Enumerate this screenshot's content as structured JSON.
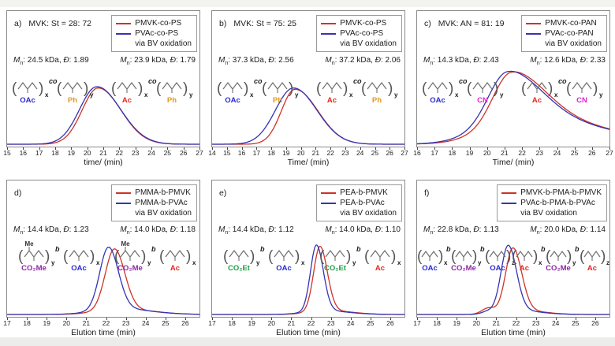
{
  "figure": {
    "description": "GPC elution chromatograms, six panels a-f, red and blue overlaid traces",
    "background": "#ffffff"
  },
  "colors": {
    "curve_red": "#cd3328",
    "curve_blue": "#3434b4",
    "oac": "#2a2ad0",
    "ac": "#e02a1e",
    "ph": "#e49a20",
    "cn": "#e022d6",
    "co2me": "#8d26a8",
    "co2et": "#219b43",
    "backbone": "#6f6f6f",
    "frame": "#8a8a8a",
    "text": "#1d1d1d"
  },
  "labels": {
    "mn_symbol": "M",
    "mn_sub": "n",
    "colon": ": ",
    "kda": "kDa",
    "comma": ", ",
    "dispersity_symbol": "Đ"
  },
  "panels": [
    {
      "id": "a",
      "letter": "a)",
      "condition": "MVK: St = 28: 72",
      "legend": {
        "entries": [
          {
            "label": "PMVK-co-PS",
            "color": "curve_red"
          },
          {
            "label": "PVAc-co-PS",
            "color": "curve_blue"
          }
        ],
        "note": "via BV oxidation"
      },
      "annotations": [
        {
          "mn": "24.5",
          "d": "1.89"
        },
        {
          "mn": "23.9",
          "d": "1.79"
        }
      ],
      "structures": [
        {
          "linker": "co",
          "units": [
            {
              "sub": "OAc",
              "color": "oac",
              "subscript": "x"
            },
            {
              "sub": "Ph",
              "color": "ph",
              "subscript": "y"
            }
          ]
        },
        {
          "linker": "co",
          "units": [
            {
              "sub": "Ac",
              "color": "ac",
              "subscript": "x"
            },
            {
              "sub": "Ph",
              "color": "ph",
              "subscript": "y"
            }
          ]
        }
      ]
    },
    {
      "id": "b",
      "letter": "b)",
      "condition": "MVK: St = 75: 25",
      "legend": {
        "entries": [
          {
            "label": "PMVK-co-PS",
            "color": "curve_red"
          },
          {
            "label": "PVAc-co-PS",
            "color": "curve_blue"
          }
        ],
        "note": "via BV oxidation"
      },
      "annotations": [
        {
          "mn": "37.3",
          "d": "2.56"
        },
        {
          "mn": "37.2",
          "d": "2.06"
        }
      ],
      "structures": [
        {
          "linker": "co",
          "units": [
            {
              "sub": "OAc",
              "color": "oac",
              "subscript": "x"
            },
            {
              "sub": "Ph",
              "color": "ph",
              "subscript": "y"
            }
          ]
        },
        {
          "linker": "co",
          "units": [
            {
              "sub": "Ac",
              "color": "ac",
              "subscript": "x"
            },
            {
              "sub": "Ph",
              "color": "ph",
              "subscript": "y"
            }
          ]
        }
      ]
    },
    {
      "id": "c",
      "letter": "c)",
      "condition": "MVK: AN = 81: 19",
      "legend": {
        "entries": [
          {
            "label": "PMVK-co-PAN",
            "color": "curve_red"
          },
          {
            "label": "PVAc-co-PAN",
            "color": "curve_blue"
          }
        ],
        "note": "via BV oxidation"
      },
      "annotations": [
        {
          "mn": "14.3",
          "d": "2.43"
        },
        {
          "mn": "12.6",
          "d": "2.33"
        }
      ],
      "structures": [
        {
          "linker": "co",
          "units": [
            {
              "sub": "OAc",
              "color": "oac",
              "subscript": "x"
            },
            {
              "sub": "CN",
              "color": "cn",
              "subscript": "y"
            }
          ]
        },
        {
          "linker": "co",
          "units": [
            {
              "sub": "Ac",
              "color": "ac",
              "subscript": "x"
            },
            {
              "sub": "CN",
              "color": "cn",
              "subscript": "y"
            }
          ]
        }
      ]
    },
    {
      "id": "d",
      "letter": "d)",
      "condition": "",
      "legend": {
        "entries": [
          {
            "label": "PMMA-b-PMVK",
            "color": "curve_red"
          },
          {
            "label": "PMMA-b-PVAc",
            "color": "curve_blue"
          }
        ],
        "note": "via BV oxidation"
      },
      "annotations": [
        {
          "mn": "14.4",
          "d": "1.23"
        },
        {
          "mn": "14.0",
          "d": "1.18"
        }
      ],
      "structures": [
        {
          "linker": "b",
          "units": [
            {
              "top": "Me",
              "sub": "CO₂Me",
              "color": "co2me",
              "subscript": "y"
            },
            {
              "sub": "OAc",
              "color": "oac",
              "subscript": "x"
            }
          ]
        },
        {
          "linker": "b",
          "units": [
            {
              "top": "Me",
              "sub": "CO₂Me",
              "color": "co2me",
              "subscript": "y"
            },
            {
              "sub": "Ac",
              "color": "ac",
              "subscript": "x"
            }
          ]
        }
      ]
    },
    {
      "id": "e",
      "letter": "e)",
      "condition": "",
      "legend": {
        "entries": [
          {
            "label": "PEA-b-PMVK",
            "color": "curve_red"
          },
          {
            "label": "PEA-b-PVAc",
            "color": "curve_blue"
          }
        ],
        "note": "via BV oxidation"
      },
      "annotations": [
        {
          "mn": "14.4",
          "d": "1.12"
        },
        {
          "mn": "14.0",
          "d": "1.10"
        }
      ],
      "structures": [
        {
          "linker": "b",
          "units": [
            {
              "sub": "CO₂Et",
              "color": "co2et",
              "subscript": "y"
            },
            {
              "sub": "OAc",
              "color": "oac",
              "subscript": "x"
            }
          ]
        },
        {
          "linker": "b",
          "units": [
            {
              "sub": "CO₂Et",
              "color": "co2et",
              "subscript": "y"
            },
            {
              "sub": "Ac",
              "color": "ac",
              "subscript": "x"
            }
          ]
        }
      ]
    },
    {
      "id": "f",
      "letter": "f)",
      "condition": "",
      "legend": {
        "entries": [
          {
            "label": "PMVK-b-PMA-b-PMVK",
            "color": "curve_red"
          },
          {
            "label": "PVAc-b-PMA-b-PVAc",
            "color": "curve_blue"
          }
        ],
        "note": "via BV oxidation"
      },
      "annotations": [
        {
          "mn": "22.8",
          "d": "1.13"
        },
        {
          "mn": "20.0",
          "d": "1.14"
        }
      ],
      "structures": [
        {
          "linker": "b",
          "units": [
            {
              "sub": "OAc",
              "color": "oac",
              "subscript": "x"
            },
            {
              "sub": "CO₂Me",
              "color": "co2me",
              "subscript": "y"
            },
            {
              "sub": "OAc",
              "color": "oac",
              "subscript": "z"
            }
          ]
        },
        {
          "linker": "b",
          "units": [
            {
              "sub": "Ac",
              "color": "ac",
              "subscript": "x"
            },
            {
              "sub": "CO₂Me",
              "color": "co2me",
              "subscript": "y"
            },
            {
              "sub": "Ac",
              "color": "ac",
              "subscript": "z"
            }
          ]
        }
      ]
    }
  ],
  "chart_data": [
    {
      "type": "line",
      "panel": "a",
      "title": "MVK: St = 28: 72",
      "xlabel": "time/ (min)",
      "xlim": [
        15,
        27
      ],
      "xticks": [
        15,
        16,
        17,
        18,
        19,
        20,
        21,
        22,
        23,
        24,
        25,
        26,
        27
      ],
      "grid": false,
      "legend_position": "top-right",
      "series": [
        {
          "name": "PMVK-co-PS",
          "color": "#cd3328",
          "mn_kda": 24.5,
          "dispersity": 1.89,
          "peak_components": [
            {
              "center": 20.68,
              "sigma_left": 1.0,
              "sigma_right": 1.42,
              "amplitude": 0.43
            }
          ]
        },
        {
          "name": "PVAc-co-PS via BV oxidation",
          "color": "#3434b4",
          "mn_kda": 23.9,
          "dispersity": 1.79,
          "peak_components": [
            {
              "center": 20.6,
              "sigma_left": 1.08,
              "sigma_right": 1.48,
              "amplitude": 0.44
            }
          ]
        }
      ]
    },
    {
      "type": "line",
      "panel": "b",
      "title": "MVK: St = 75: 25",
      "xlabel": "Time/ (min)",
      "xlim": [
        14,
        27
      ],
      "xticks": [
        14,
        15,
        16,
        17,
        18,
        19,
        20,
        21,
        22,
        23,
        24,
        25,
        26,
        27
      ],
      "grid": false,
      "legend_position": "top-right",
      "series": [
        {
          "name": "PMVK-co-PS",
          "color": "#cd3328",
          "mn_kda": 37.3,
          "dispersity": 2.56,
          "peak_components": [
            {
              "center": 19.6,
              "sigma_left": 0.92,
              "sigma_right": 1.55,
              "amplitude": 0.42
            }
          ]
        },
        {
          "name": "PVAc-co-PS via BV oxidation",
          "color": "#3434b4",
          "mn_kda": 37.2,
          "dispersity": 2.06,
          "peak_components": [
            {
              "center": 19.5,
              "sigma_left": 1.22,
              "sigma_right": 1.58,
              "amplitude": 0.43
            }
          ]
        }
      ]
    },
    {
      "type": "line",
      "panel": "c",
      "title": "MVK: AN = 81: 19",
      "xlabel": "Time/ (min)",
      "xlim": [
        16,
        27
      ],
      "xticks": [
        16,
        17,
        18,
        19,
        20,
        21,
        22,
        23,
        24,
        25,
        26,
        27
      ],
      "grid": false,
      "legend_position": "top-right",
      "series": [
        {
          "name": "PMVK-co-PAN",
          "color": "#cd3328",
          "mn_kda": 14.3,
          "dispersity": 2.43,
          "peak_components": [
            {
              "center": 21.35,
              "sigma_left": 1.0,
              "sigma_right": 1.9,
              "amplitude": 0.35
            },
            {
              "center": 22.0,
              "sigma_left": 2.0,
              "sigma_right": 4.5,
              "amplitude": 0.21
            }
          ]
        },
        {
          "name": "PVAc-co-PAN via BV oxidation",
          "color": "#3434b4",
          "mn_kda": 12.6,
          "dispersity": 2.33,
          "peak_components": [
            {
              "center": 21.13,
              "sigma_left": 1.05,
              "sigma_right": 1.9,
              "amplitude": 0.35
            },
            {
              "center": 21.8,
              "sigma_left": 2.05,
              "sigma_right": 4.5,
              "amplitude": 0.215
            }
          ]
        }
      ]
    },
    {
      "type": "line",
      "panel": "d",
      "title": "",
      "xlabel": "Elution time (min)",
      "xlim": [
        17,
        26.72
      ],
      "xticks": [
        17,
        18,
        19,
        20,
        21,
        22,
        23,
        24,
        25,
        26
      ],
      "grid": false,
      "legend_position": "top-right",
      "series": [
        {
          "name": "PMMA-b-PMVK",
          "color": "#cd3328",
          "mn_kda": 14.4,
          "dispersity": 1.23,
          "peak_components": [
            {
              "center": 22.42,
              "sigma_left": 0.46,
              "sigma_right": 0.52,
              "amplitude": 0.46
            },
            {
              "center": 22.8,
              "sigma_left": 1.2,
              "sigma_right": 1.5,
              "amplitude": 0.04
            }
          ]
        },
        {
          "name": "PMMA-b-PVAc via BV oxidation",
          "color": "#3434b4",
          "mn_kda": 14.0,
          "dispersity": 1.18,
          "peak_components": [
            {
              "center": 22.12,
              "sigma_left": 0.44,
              "sigma_right": 0.5,
              "amplitude": 0.47
            },
            {
              "center": 22.6,
              "sigma_left": 1.2,
              "sigma_right": 1.6,
              "amplitude": 0.045
            }
          ]
        }
      ]
    },
    {
      "type": "line",
      "panel": "e",
      "title": "",
      "xlabel": "Elution time (min)",
      "xlim": [
        17,
        26.72
      ],
      "xticks": [
        17,
        18,
        19,
        20,
        21,
        22,
        23,
        24,
        25,
        26
      ],
      "grid": false,
      "legend_position": "top-right",
      "series": [
        {
          "name": "PEA-b-PMVK",
          "color": "#cd3328",
          "mn_kda": 14.4,
          "dispersity": 1.12,
          "peak_components": [
            {
              "center": 22.45,
              "sigma_left": 0.32,
              "sigma_right": 0.37,
              "amplitude": 0.49
            },
            {
              "center": 22.8,
              "sigma_left": 0.9,
              "sigma_right": 1.2,
              "amplitude": 0.03
            }
          ]
        },
        {
          "name": "PEA-b-PVAc via BV oxidation",
          "color": "#3434b4",
          "mn_kda": 14.0,
          "dispersity": 1.1,
          "peak_components": [
            {
              "center": 22.27,
              "sigma_left": 0.3,
              "sigma_right": 0.35,
              "amplitude": 0.5
            },
            {
              "center": 22.6,
              "sigma_left": 0.9,
              "sigma_right": 1.2,
              "amplitude": 0.03
            }
          ]
        }
      ]
    },
    {
      "type": "line",
      "panel": "f",
      "title": "",
      "xlabel": "Elution time (min)",
      "xlim": [
        17,
        26.72
      ],
      "xticks": [
        17,
        18,
        19,
        20,
        21,
        22,
        23,
        24,
        25,
        26
      ],
      "grid": false,
      "legend_position": "top-right",
      "series": [
        {
          "name": "PMVK-b-PMA-b-PMVK",
          "color": "#cd3328",
          "mn_kda": 22.8,
          "dispersity": 1.13,
          "peak_components": [
            {
              "center": 21.84,
              "sigma_left": 0.37,
              "sigma_right": 0.44,
              "amplitude": 0.48
            },
            {
              "center": 20.6,
              "sigma_left": 0.33,
              "sigma_right": 0.33,
              "amplitude": 0.045
            },
            {
              "center": 22.3,
              "sigma_left": 0.9,
              "sigma_right": 1.1,
              "amplitude": 0.03
            }
          ]
        },
        {
          "name": "PVAc-b-PMA-b-PVAc via BV oxidation",
          "color": "#3434b4",
          "mn_kda": 20.0,
          "dispersity": 1.14,
          "peak_components": [
            {
              "center": 21.6,
              "sigma_left": 0.36,
              "sigma_right": 0.42,
              "amplitude": 0.5
            },
            {
              "center": 20.55,
              "sigma_left": 0.28,
              "sigma_right": 0.28,
              "amplitude": 0.018
            },
            {
              "center": 22.1,
              "sigma_left": 0.9,
              "sigma_right": 1.1,
              "amplitude": 0.03
            }
          ]
        }
      ]
    }
  ]
}
